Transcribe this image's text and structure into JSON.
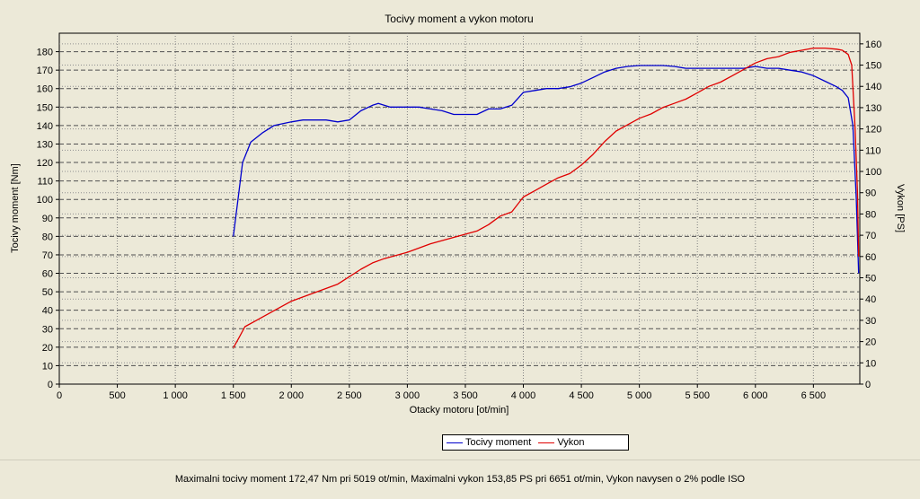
{
  "chart_data": {
    "type": "line",
    "title": "Tocivy moment a vykon motoru",
    "xlabel": "Otacky motoru [ot/min]",
    "ylabel_left": "Tocivy moment [Nm]",
    "ylabel_right": "Vykon [PS]",
    "xlim": [
      0,
      6900
    ],
    "ylim_left": [
      0,
      190
    ],
    "ylim_right": [
      0,
      165
    ],
    "x_ticks": [
      0,
      500,
      1000,
      1500,
      2000,
      2500,
      3000,
      3500,
      4000,
      4500,
      5000,
      5500,
      6000,
      6500
    ],
    "x_tick_labels": [
      "0",
      "500",
      "1 000",
      "1 500",
      "2 000",
      "2 500",
      "3 000",
      "3 500",
      "4 000",
      "4 500",
      "5 000",
      "5 500",
      "6 000",
      "6 500"
    ],
    "y_left_ticks": [
      0,
      10,
      20,
      30,
      40,
      50,
      60,
      70,
      80,
      90,
      100,
      110,
      120,
      130,
      140,
      150,
      160,
      170,
      180
    ],
    "y_right_ticks": [
      0,
      10,
      20,
      30,
      40,
      50,
      60,
      70,
      80,
      90,
      100,
      110,
      120,
      130,
      140,
      150,
      160
    ],
    "grid": true,
    "legend_position": "bottom-center",
    "series": [
      {
        "name": "Tocivy moment",
        "axis": "left",
        "color": "#0000cc",
        "points": [
          [
            1500,
            80
          ],
          [
            1540,
            100
          ],
          [
            1580,
            120
          ],
          [
            1650,
            131
          ],
          [
            1750,
            136
          ],
          [
            1850,
            140
          ],
          [
            2000,
            142
          ],
          [
            2100,
            143
          ],
          [
            2300,
            143
          ],
          [
            2400,
            142
          ],
          [
            2500,
            143
          ],
          [
            2600,
            148
          ],
          [
            2700,
            151
          ],
          [
            2750,
            152
          ],
          [
            2850,
            150
          ],
          [
            3000,
            150
          ],
          [
            3100,
            150
          ],
          [
            3200,
            149
          ],
          [
            3300,
            148
          ],
          [
            3400,
            146
          ],
          [
            3500,
            146
          ],
          [
            3600,
            146
          ],
          [
            3700,
            149
          ],
          [
            3800,
            149
          ],
          [
            3900,
            151
          ],
          [
            4000,
            158
          ],
          [
            4100,
            159
          ],
          [
            4200,
            160
          ],
          [
            4300,
            160
          ],
          [
            4400,
            161
          ],
          [
            4500,
            163
          ],
          [
            4600,
            166
          ],
          [
            4700,
            169
          ],
          [
            4800,
            171
          ],
          [
            4900,
            172
          ],
          [
            5000,
            172.5
          ],
          [
            5100,
            172.5
          ],
          [
            5200,
            172.5
          ],
          [
            5300,
            172
          ],
          [
            5400,
            171
          ],
          [
            5500,
            171
          ],
          [
            5600,
            171
          ],
          [
            5700,
            171
          ],
          [
            5800,
            171
          ],
          [
            5900,
            171
          ],
          [
            6000,
            172
          ],
          [
            6100,
            171
          ],
          [
            6200,
            171
          ],
          [
            6300,
            170
          ],
          [
            6400,
            169
          ],
          [
            6500,
            167
          ],
          [
            6600,
            164
          ],
          [
            6700,
            161
          ],
          [
            6750,
            159
          ],
          [
            6800,
            155
          ],
          [
            6840,
            140
          ],
          [
            6870,
            100
          ],
          [
            6890,
            60
          ]
        ]
      },
      {
        "name": "Vykon",
        "axis": "right",
        "color": "#e00000",
        "points": [
          [
            1500,
            17
          ],
          [
            1550,
            22
          ],
          [
            1600,
            27
          ],
          [
            1700,
            30
          ],
          [
            1800,
            33
          ],
          [
            1900,
            36
          ],
          [
            2000,
            39
          ],
          [
            2200,
            43
          ],
          [
            2400,
            47
          ],
          [
            2600,
            54
          ],
          [
            2700,
            57
          ],
          [
            2800,
            59
          ],
          [
            3000,
            62
          ],
          [
            3200,
            66
          ],
          [
            3400,
            69
          ],
          [
            3600,
            72
          ],
          [
            3700,
            75
          ],
          [
            3800,
            79
          ],
          [
            3900,
            81
          ],
          [
            4000,
            88
          ],
          [
            4100,
            91
          ],
          [
            4200,
            94
          ],
          [
            4300,
            97
          ],
          [
            4400,
            99
          ],
          [
            4500,
            103
          ],
          [
            4600,
            108
          ],
          [
            4700,
            114
          ],
          [
            4800,
            119
          ],
          [
            4900,
            122
          ],
          [
            5000,
            125
          ],
          [
            5100,
            127
          ],
          [
            5200,
            130
          ],
          [
            5300,
            132
          ],
          [
            5400,
            134
          ],
          [
            5500,
            137
          ],
          [
            5600,
            140
          ],
          [
            5700,
            142
          ],
          [
            5800,
            145
          ],
          [
            5900,
            148
          ],
          [
            6000,
            151
          ],
          [
            6100,
            153
          ],
          [
            6200,
            154
          ],
          [
            6300,
            156
          ],
          [
            6400,
            157
          ],
          [
            6500,
            158
          ],
          [
            6600,
            158
          ],
          [
            6700,
            157.5
          ],
          [
            6750,
            157
          ],
          [
            6800,
            155
          ],
          [
            6830,
            150
          ],
          [
            6860,
            120
          ],
          [
            6880,
            90
          ],
          [
            6890,
            60
          ]
        ]
      }
    ],
    "summary": "Maximalni tocivy moment 172,47 Nm pri 5019 ot/min,  Maximalni vykon 153,85 PS pri 6651 ot/min,  Vykon navysen o 2% podle ISO"
  }
}
